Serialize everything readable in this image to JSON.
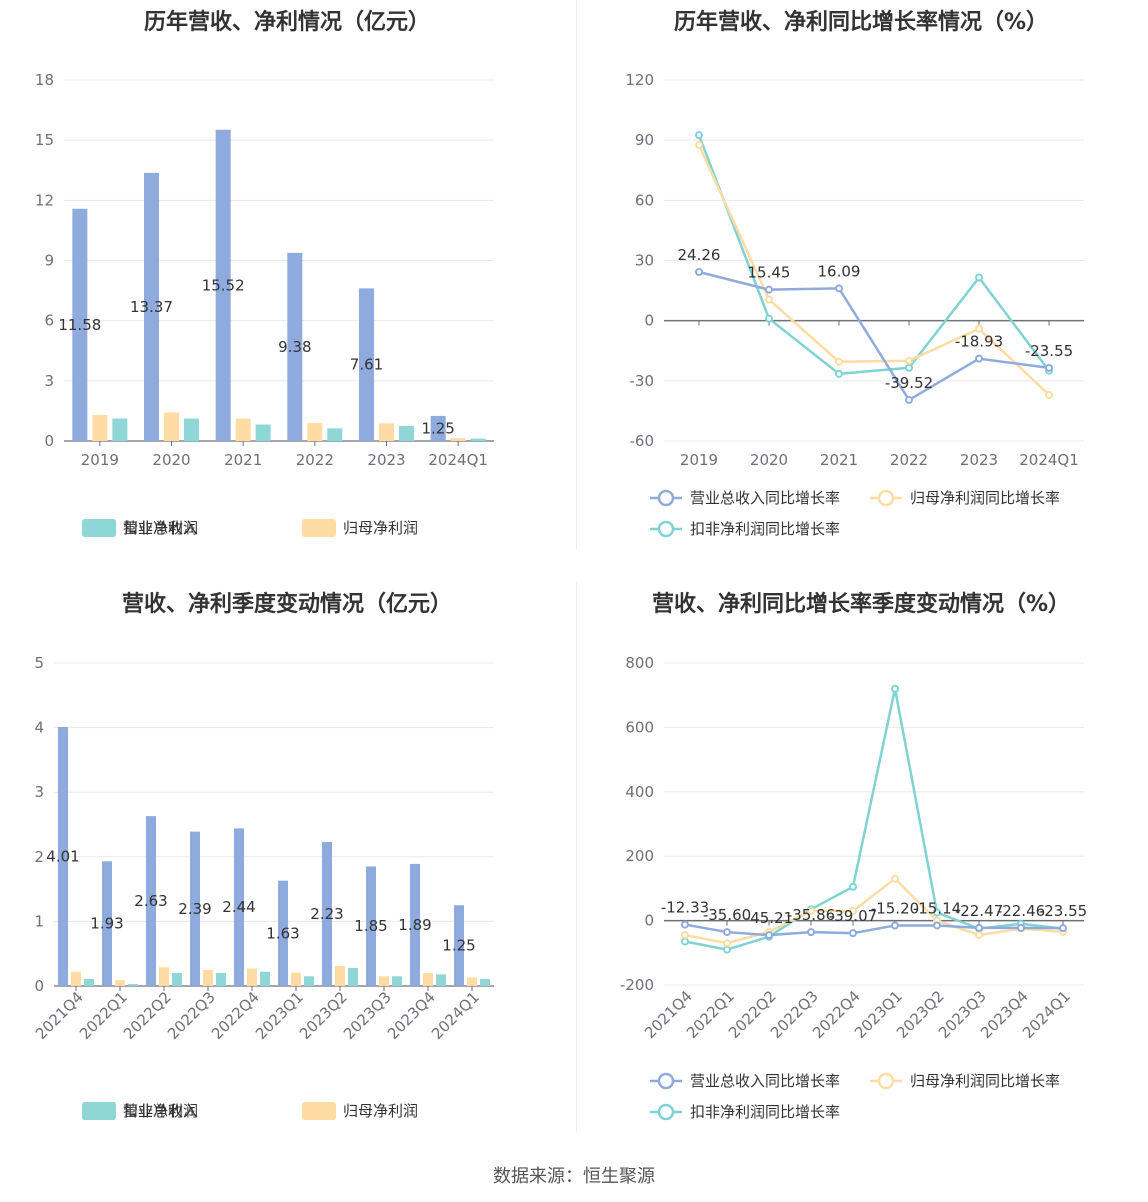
{
  "colors": {
    "revenue": "#8faadc",
    "net": "#ffdca3",
    "deducted": "#8fd6d7",
    "line_revenue": "#8faadc",
    "line_net": "#ffdca3",
    "line_deducted": "#7fd3d3"
  },
  "legend_bar": [
    "营业总收入",
    "归母净利润",
    "扣非净利润"
  ],
  "legend_line": [
    "营业总收入同比增长率",
    "归母净利润同比增长率",
    "扣非净利润同比增长率"
  ],
  "source": "数据来源：恒生聚源",
  "chart_data": [
    {
      "type": "bar",
      "title": "历年营收、净利情况（亿元）",
      "categories": [
        "2019",
        "2020",
        "2021",
        "2022",
        "2023",
        "2024Q1"
      ],
      "ylim": [
        0,
        18
      ],
      "yticks": [
        0,
        3,
        6,
        9,
        12,
        15,
        18
      ],
      "series": [
        {
          "name": "营业总收入",
          "values": [
            11.58,
            13.37,
            15.52,
            9.38,
            7.61,
            1.25
          ]
        },
        {
          "name": "归母净利润",
          "values": [
            1.3,
            1.42,
            1.12,
            0.9,
            0.88,
            0.14
          ]
        },
        {
          "name": "扣非净利润",
          "values": [
            1.12,
            1.12,
            0.82,
            0.63,
            0.75,
            0.12
          ]
        }
      ],
      "labels": [
        "11.58",
        "13.37",
        "15.52",
        "9.38",
        "7.61",
        "1.25"
      ],
      "legend": "bottom"
    },
    {
      "type": "line",
      "title": "历年营收、净利同比增长率情况（%）",
      "categories": [
        "2019",
        "2020",
        "2021",
        "2022",
        "2023",
        "2024Q1"
      ],
      "ylim": [
        -60,
        120
      ],
      "yticks": [
        -60,
        -30,
        0,
        30,
        60,
        90,
        120
      ],
      "series": [
        {
          "name": "营业总收入同比增长率",
          "values": [
            24.26,
            15.45,
            16.09,
            -39.52,
            -18.93,
            -23.55
          ]
        },
        {
          "name": "归母净利润同比增长率",
          "values": [
            87.5,
            10.5,
            -20.5,
            -20.0,
            -4.0,
            -37.0
          ]
        },
        {
          "name": "扣非净利润同比增长率",
          "values": [
            92.5,
            1.0,
            -26.5,
            -23.5,
            21.5,
            -25.0
          ]
        }
      ],
      "labels": [
        "24.26",
        "15.45",
        "16.09",
        "-39.52",
        "-18.93",
        "-23.55"
      ],
      "legend": "bottom"
    },
    {
      "type": "bar",
      "title": "营收、净利季度变动情况（亿元）",
      "categories": [
        "2021Q4",
        "2022Q1",
        "2022Q2",
        "2022Q3",
        "2022Q4",
        "2023Q1",
        "2023Q2",
        "2023Q3",
        "2023Q4",
        "2024Q1"
      ],
      "ylim": [
        0,
        5
      ],
      "yticks": [
        0,
        1,
        2,
        3,
        4,
        5
      ],
      "series": [
        {
          "name": "营业总收入",
          "values": [
            4.01,
            1.93,
            2.63,
            2.39,
            2.44,
            1.63,
            2.23,
            1.85,
            1.89,
            1.25
          ]
        },
        {
          "name": "归母净利润",
          "values": [
            0.22,
            0.09,
            0.29,
            0.25,
            0.27,
            0.21,
            0.31,
            0.15,
            0.2,
            0.13
          ]
        },
        {
          "name": "扣非净利润",
          "values": [
            0.11,
            0.03,
            0.2,
            0.2,
            0.22,
            0.15,
            0.28,
            0.15,
            0.18,
            0.11
          ]
        }
      ],
      "labels": [
        "4.01",
        "1.93",
        "2.63",
        "2.39",
        "2.44",
        "1.63",
        "2.23",
        "1.85",
        "1.89",
        "1.25"
      ],
      "legend": "bottom"
    },
    {
      "type": "line",
      "title": "营收、净利同比增长率季度变动情况（%）",
      "categories": [
        "2021Q4",
        "2022Q1",
        "2022Q2",
        "2022Q3",
        "2022Q4",
        "2023Q1",
        "2023Q2",
        "2023Q3",
        "2023Q4",
        "2024Q1"
      ],
      "ylim": [
        -200,
        800
      ],
      "yticks": [
        -200,
        0,
        200,
        400,
        600,
        800
      ],
      "series": [
        {
          "name": "营业总收入同比增长率",
          "values": [
            -12.33,
            -35.6,
            -45.21,
            -35.86,
            -39.07,
            -15.2,
            -15.14,
            -22.47,
            -22.46,
            -23.55
          ]
        },
        {
          "name": "归母净利润同比增长率",
          "values": [
            -45,
            -70,
            -35,
            30,
            30,
            130,
            0,
            -45,
            -25,
            -35
          ]
        },
        {
          "name": "扣非净利润同比增长率",
          "values": [
            -65,
            -90,
            -50,
            35,
            105,
            720,
            25,
            -25,
            -10,
            -25
          ]
        }
      ],
      "labels": [
        "-12.33",
        "-35.60",
        "-45.21",
        "-35.86",
        "-39.07",
        "-15.20",
        "-15.14",
        "-22.47",
        "-22.46",
        "-23.55"
      ],
      "legend": "bottom"
    }
  ]
}
